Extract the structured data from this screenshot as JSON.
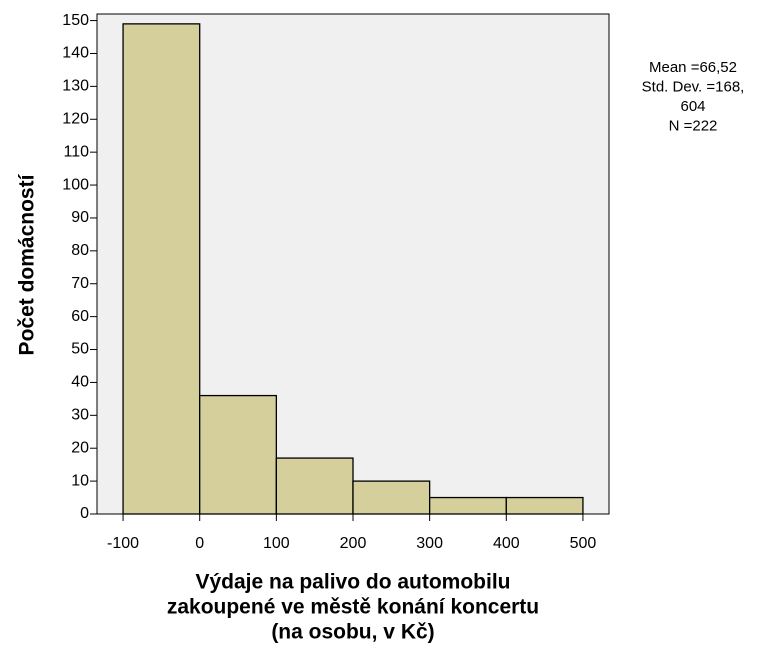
{
  "chart_data": {
    "type": "histogram",
    "xlabel": [
      "Výdaje na palivo do automobilu",
      "zakoupené ve městě konání koncertu",
      "(na osobu, v Kč)"
    ],
    "ylabel": "Počet domácností",
    "bins": [
      -100,
      0,
      100,
      200,
      300,
      400,
      500
    ],
    "values": [
      149,
      36,
      17,
      10,
      5,
      5
    ],
    "color": "#d4cf9b",
    "xlim": [
      -134,
      534
    ],
    "ylim": [
      0,
      152
    ],
    "xticks": [
      -100,
      0,
      100,
      200,
      300,
      400,
      500
    ],
    "yticks": [
      0,
      10,
      20,
      30,
      40,
      50,
      60,
      70,
      80,
      90,
      100,
      110,
      120,
      130,
      140,
      150
    ],
    "annotations": [
      "Mean =66,52",
      "Std. Dev. =168,",
      "604",
      "N =222"
    ]
  }
}
